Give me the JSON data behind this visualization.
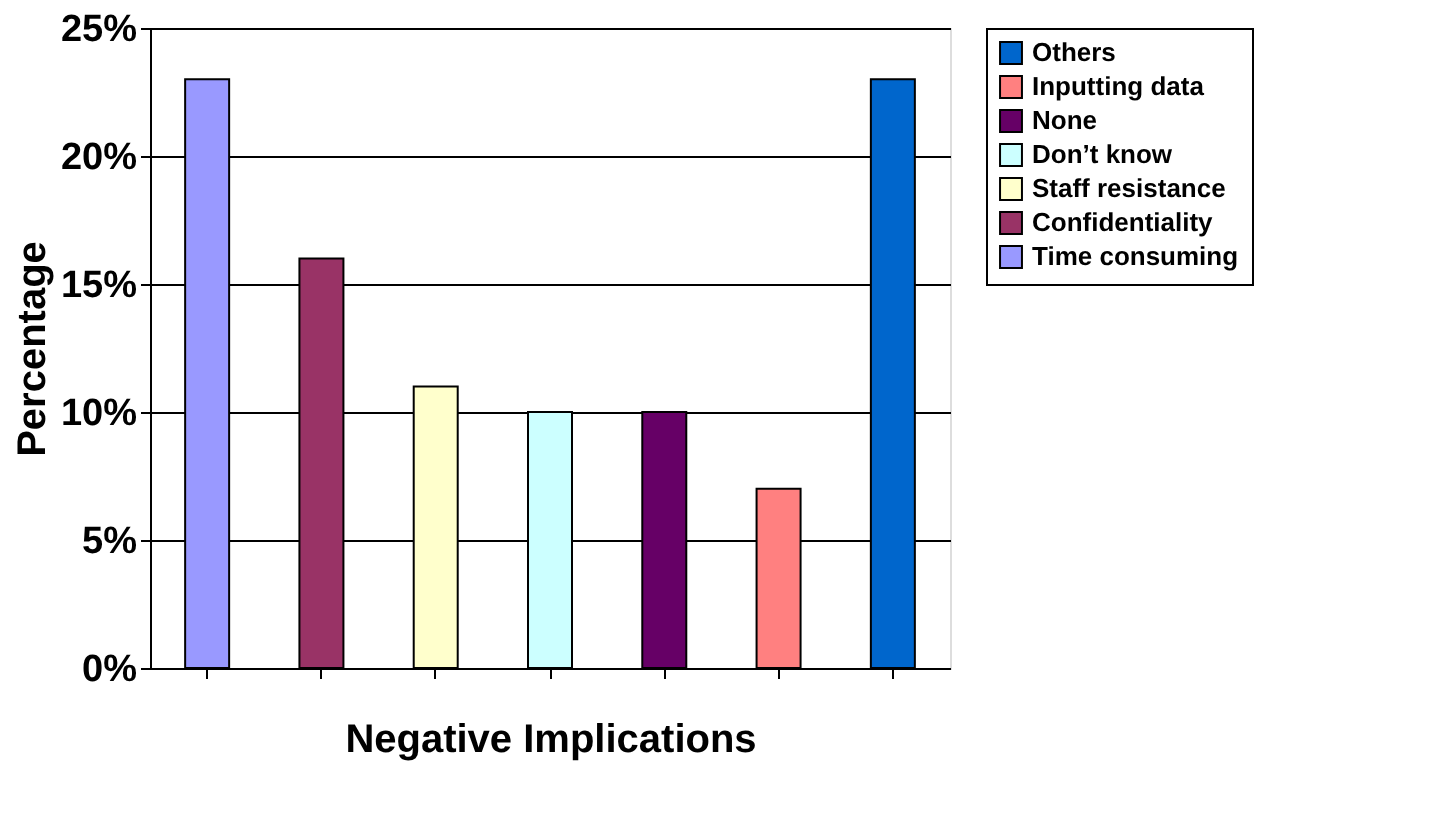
{
  "chart_data": {
    "type": "bar",
    "xlabel": "Negative Implications",
    "ylabel": "Percentage",
    "categories": [
      null,
      null,
      null,
      null,
      null,
      null,
      null
    ],
    "series": [
      {
        "name": "Time consuming",
        "color": "#9999ff",
        "values": [
          23,
          null,
          null,
          null,
          null,
          null,
          null
        ]
      },
      {
        "name": "Confidentiality",
        "color": "#993366",
        "values": [
          null,
          16,
          null,
          null,
          null,
          null,
          null
        ]
      },
      {
        "name": "Staff resistance",
        "color": "#ffffcc",
        "values": [
          null,
          null,
          11,
          null,
          null,
          null,
          null
        ]
      },
      {
        "name": "Don’t know",
        "color": "#ccffff",
        "values": [
          null,
          null,
          null,
          10,
          null,
          null,
          null
        ]
      },
      {
        "name": "None",
        "color": "#660066",
        "values": [
          null,
          null,
          null,
          null,
          10,
          null,
          null
        ]
      },
      {
        "name": "Inputting data",
        "color": "#ff8080",
        "values": [
          null,
          null,
          null,
          null,
          null,
          7,
          null
        ]
      },
      {
        "name": "Others",
        "color": "#0066cc",
        "values": [
          null,
          null,
          null,
          null,
          null,
          null,
          23
        ]
      }
    ],
    "ylim": [
      0,
      25
    ],
    "yticks": [
      {
        "value": 0,
        "label": "0%"
      },
      {
        "value": 5,
        "label": "5%"
      },
      {
        "value": 10,
        "label": "10%"
      },
      {
        "value": 15,
        "label": "15%"
      },
      {
        "value": 20,
        "label": "20%"
      },
      {
        "value": 25,
        "label": "25%"
      }
    ],
    "grid": "y",
    "legend": "right",
    "tick_labels": "y"
  }
}
